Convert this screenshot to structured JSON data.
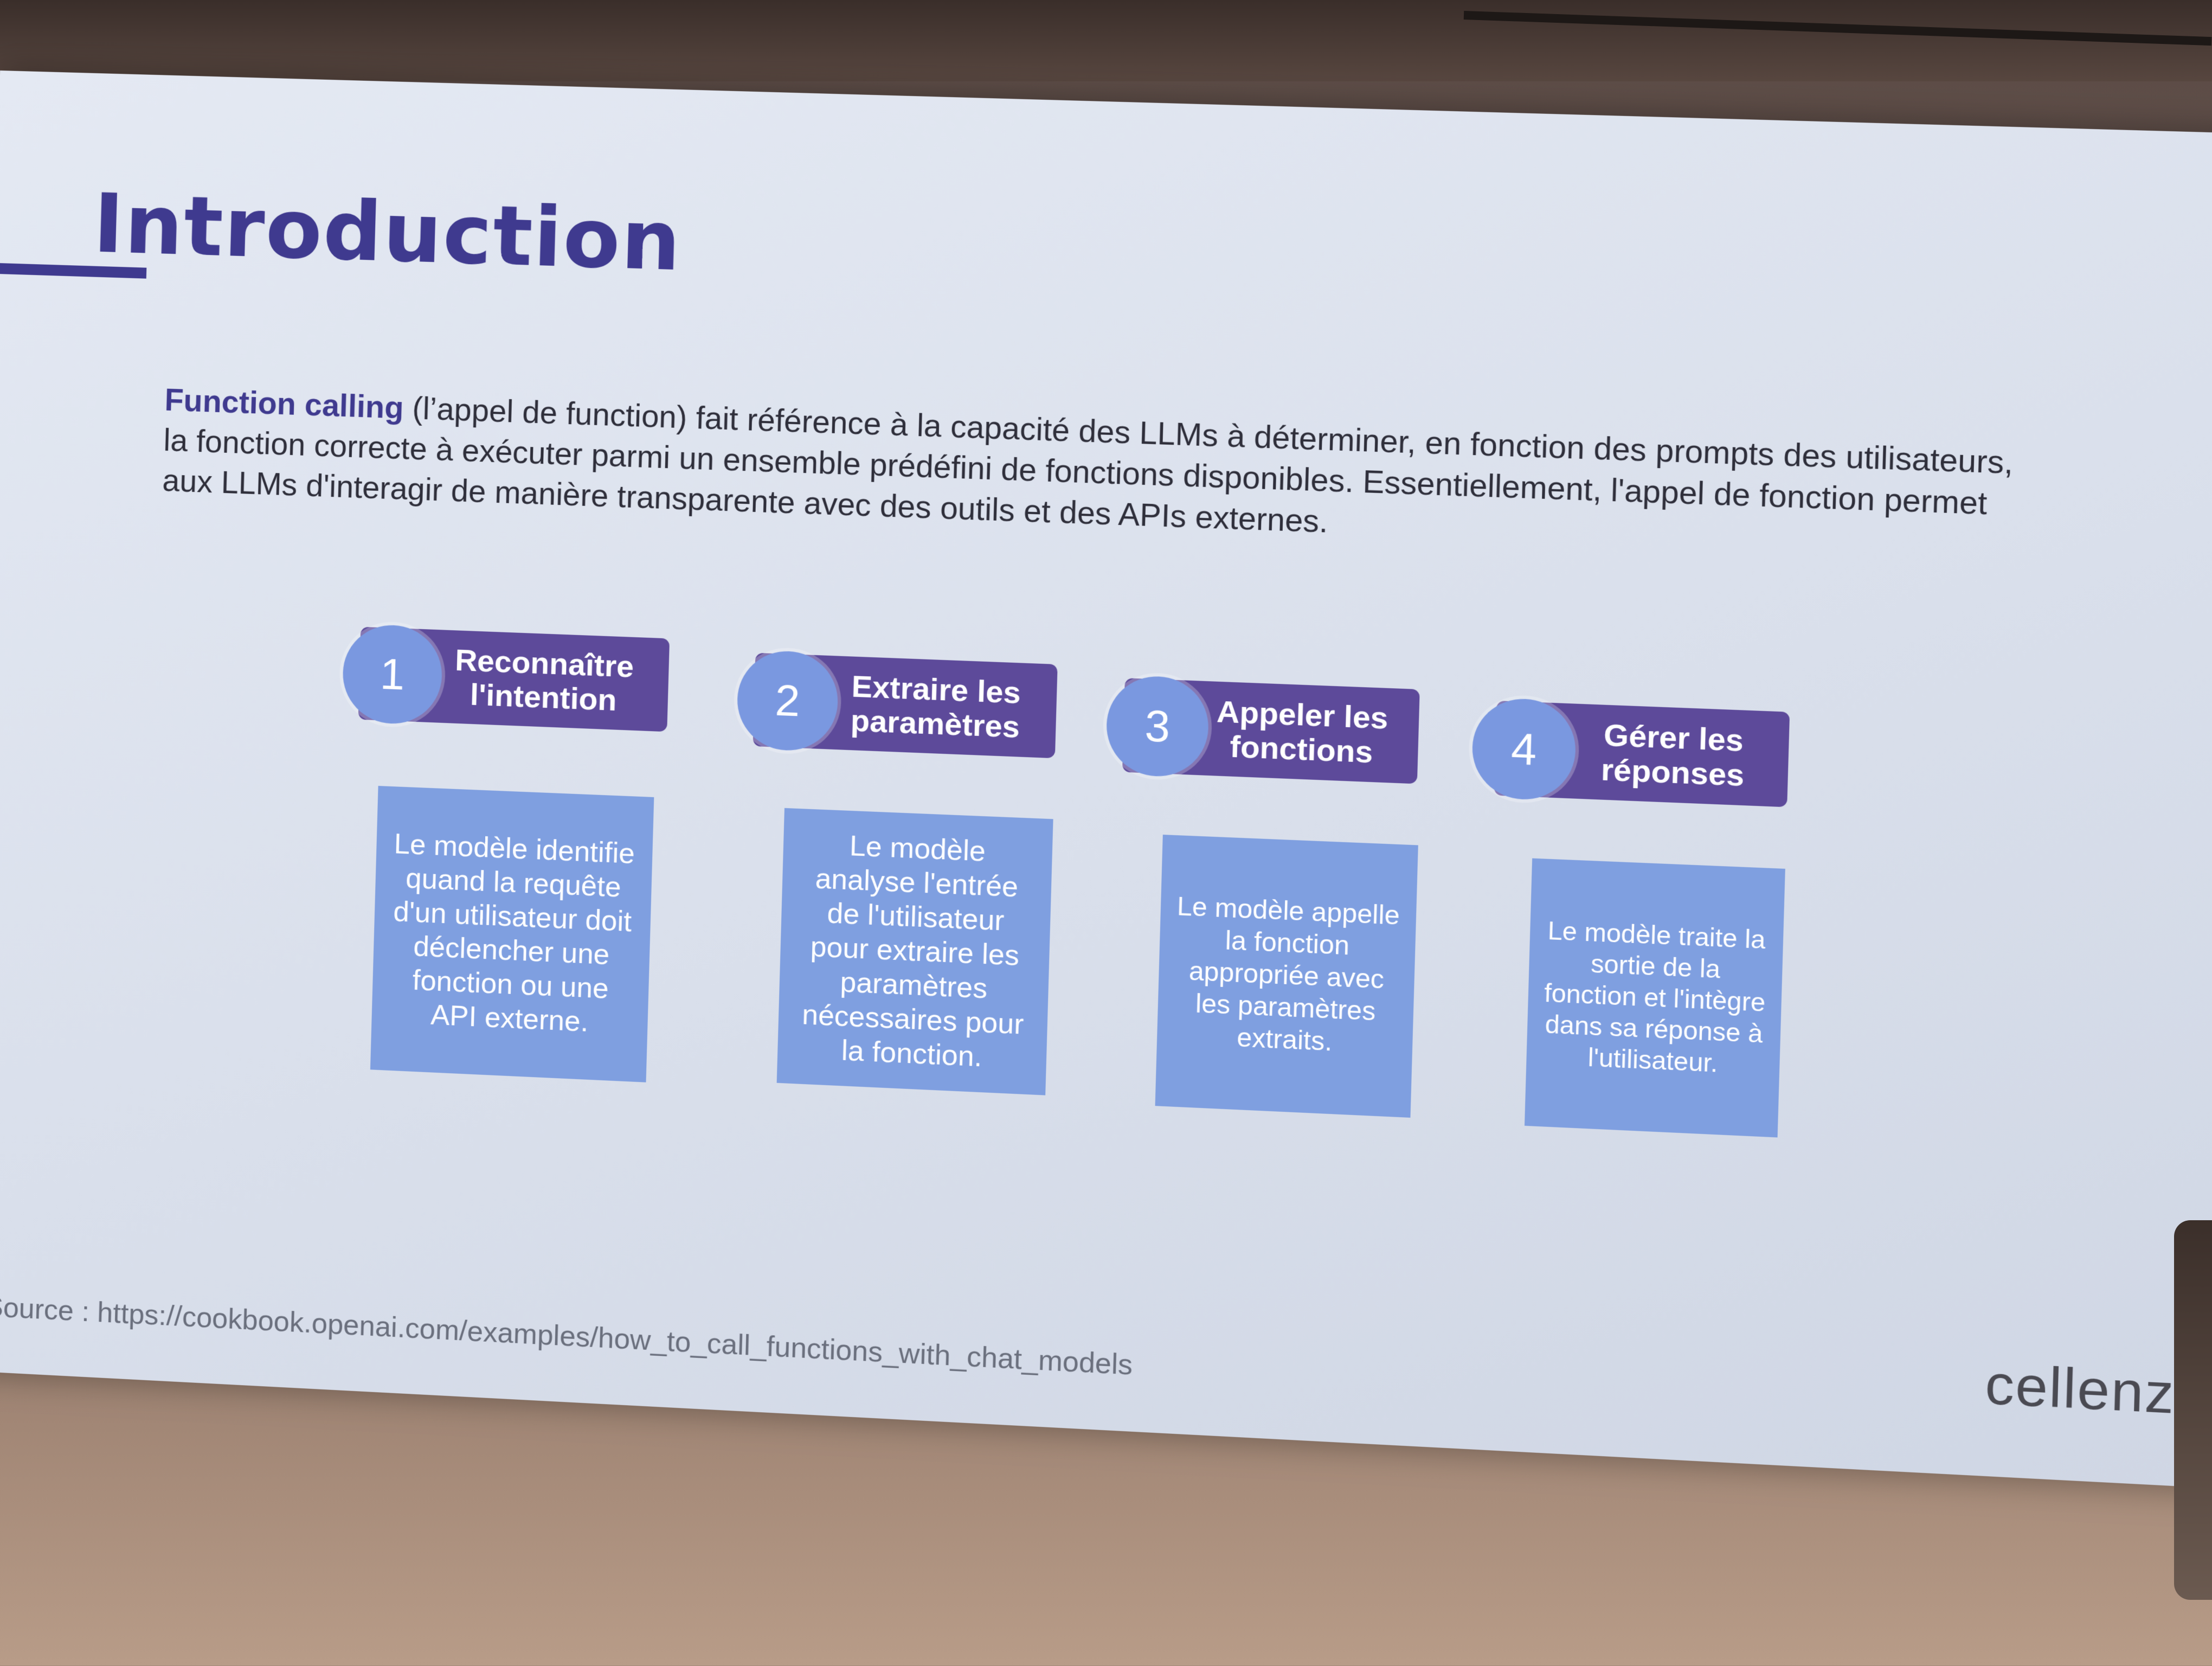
{
  "slide": {
    "title": "Introduction",
    "intro": {
      "lead": "Function calling",
      "text": " (l’appel de function) fait référence à la capacité des LLMs à déterminer, en fonction des prompts des utilisateurs, la fonction correcte à exécuter parmi un ensemble prédéfini de fonctions disponibles. Essentiellement, l'appel de fonction permet aux LLMs d'interagir de manière transparente avec des outils et des APIs externes."
    },
    "steps": [
      {
        "number": "1",
        "title": "Reconnaître\nl'intention",
        "description": "Le modèle identifie quand la requête d'un utilisateur doit déclencher une fonction ou une API externe."
      },
      {
        "number": "2",
        "title": "Extraire les\nparamètres",
        "description": "Le modèle analyse l'entrée de l'utilisateur pour extraire les paramètres nécessaires pour la fonction."
      },
      {
        "number": "3",
        "title": "Appeler les\nfonctions",
        "description": "Le modèle appelle la fonction appropriée avec les paramètres extraits."
      },
      {
        "number": "4",
        "title": "Gérer les\nréponses",
        "description": "Le modèle traite la sortie de la fonction et l'intègre dans sa réponse à l'utilisateur."
      }
    ],
    "source": "Source : https://cookbook.openai.com/examples/how_to_call_functions_with_chat_models",
    "logo": "cellenza"
  },
  "colors": {
    "title": "#3f3a8f",
    "pill": "#5d4a9a",
    "circle": "#7a98e0",
    "box": "#7f9fe0"
  }
}
